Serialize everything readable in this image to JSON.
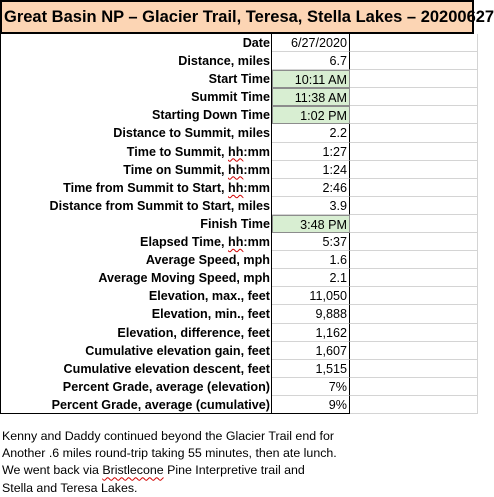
{
  "title": "Great Basin NP – Glacier Trail, Teresa, Stella Lakes – 20200627",
  "rows": [
    {
      "label": "Date",
      "value": "6/27/2020",
      "highlight": false
    },
    {
      "label": "Distance, miles",
      "value": "6.7",
      "highlight": false
    },
    {
      "label": "Start Time",
      "value": "10:11 AM",
      "highlight": true
    },
    {
      "label": "Summit Time",
      "value": "11:38 AM",
      "highlight": true
    },
    {
      "label": "Starting Down Time",
      "value": "1:02 PM",
      "highlight": true
    },
    {
      "label": "Distance to Summit, miles",
      "value": "2.2",
      "highlight": false
    },
    {
      "label": "Time to Summit, hh:mm",
      "value": "1:27",
      "highlight": false
    },
    {
      "label": "Time on Summit, hh:mm",
      "value": "1:24",
      "highlight": false
    },
    {
      "label": "Time from Summit to Start, hh:mm",
      "value": "2:46",
      "highlight": false
    },
    {
      "label": "Distance from Summit to Start, miles",
      "value": "3.9",
      "highlight": false
    },
    {
      "label": "Finish Time",
      "value": "3:48 PM",
      "highlight": true
    },
    {
      "label": "Elapsed Time, hh:mm",
      "value": "5:37",
      "highlight": false
    },
    {
      "label": "Average Speed, mph",
      "value": "1.6",
      "highlight": false
    },
    {
      "label": "Average Moving Speed, mph",
      "value": "2.1",
      "highlight": false
    },
    {
      "label": "Elevation, max., feet",
      "value": "11,050",
      "highlight": false
    },
    {
      "label": "Elevation, min., feet",
      "value": "9,888",
      "highlight": false
    },
    {
      "label": "Elevation, difference, feet",
      "value": "1,162",
      "highlight": false
    },
    {
      "label": "Cumulative elevation gain, feet",
      "value": "1,607",
      "highlight": false
    },
    {
      "label": "Cumulative elevation descent, feet",
      "value": "1,515",
      "highlight": false
    },
    {
      "label": "Percent Grade, average (elevation)",
      "value": "7%",
      "highlight": false
    },
    {
      "label": "Percent Grade, average (cumulative)",
      "value": "9%",
      "highlight": false
    }
  ],
  "notes": [
    "Kenny and Daddy continued beyond the Glacier Trail end for",
    "Another .6 miles round-trip taking 55 minutes, then ate lunch.",
    "We went back via Bristlecone Pine Interpretive trail and",
    "Stella and Teresa Lakes."
  ],
  "colors": {
    "title_background": "#fcd5b4",
    "time_highlight": "#d8eed2",
    "spellcheck_underline": "#d00000"
  }
}
